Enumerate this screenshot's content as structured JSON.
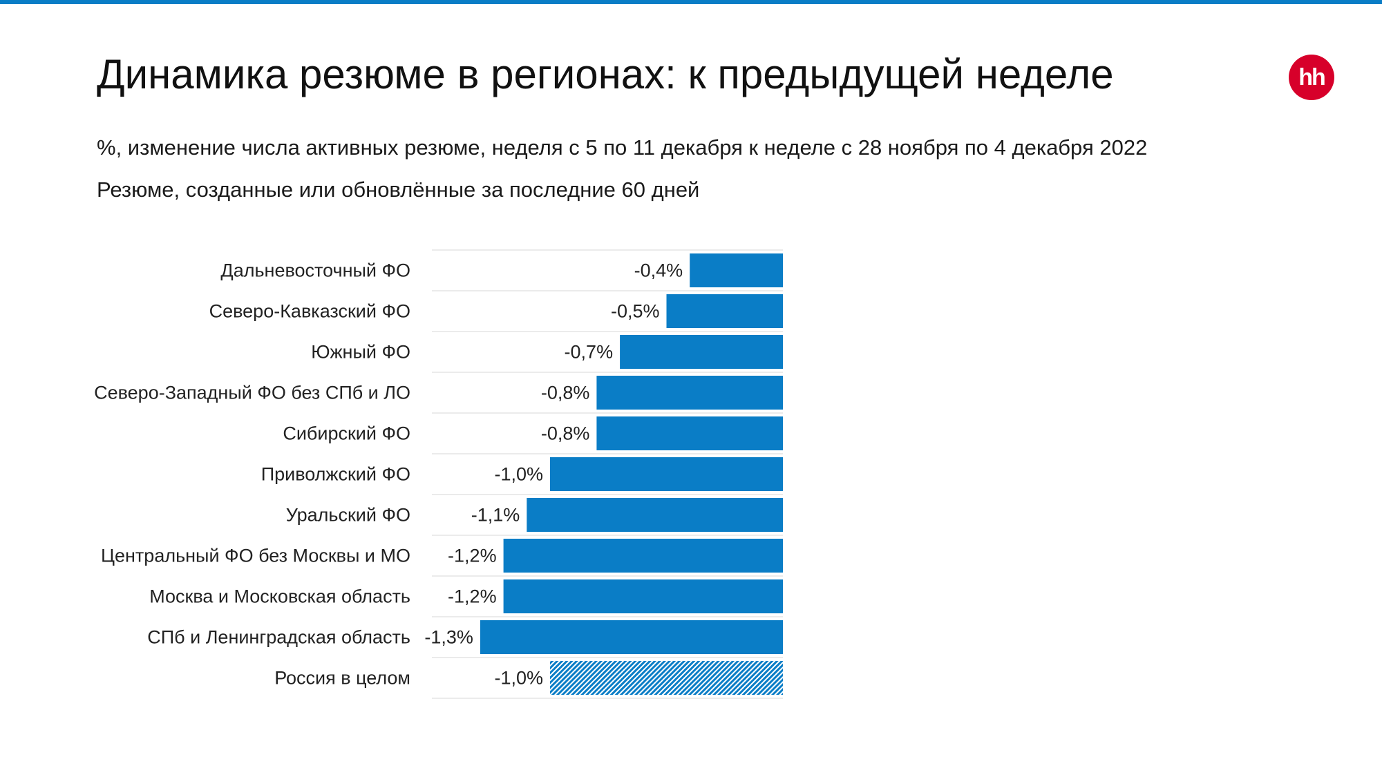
{
  "header": {
    "title": "Динамика резюме в регионах: к предыдущей неделе",
    "subtitle": "%, изменение числа активных резюме, неделя с 5 по 11 декабря к неделе с 28 ноября по 4 декабря 2022",
    "note": "Резюме, созданные или обновлённые за последние 60 дней",
    "logo_text": "hh"
  },
  "colors": {
    "bar": "#0a7dc6",
    "top_rule": "#0a7dc6",
    "logo": "#d7002a"
  },
  "chart_data": {
    "type": "bar",
    "orientation": "horizontal",
    "categories": [
      "Дальневосточный ФО",
      "Северо-Кавказский ФО",
      "Южный ФО",
      "Северо-Западный ФО без СПб и ЛО",
      "Сибирский ФО",
      "Приволжский ФО",
      "Уральский ФО",
      "Центральный ФО без Москвы и МО",
      "Москва и Московская область",
      "СПб и Ленинградская область",
      "Россия в целом"
    ],
    "values": [
      -0.4,
      -0.5,
      -0.7,
      -0.8,
      -0.8,
      -1.0,
      -1.1,
      -1.2,
      -1.2,
      -1.3,
      -1.0
    ],
    "labels": [
      "-0,4%",
      "-0,5%",
      "-0,7%",
      "-0,8%",
      "-0,8%",
      "-1,0%",
      "-1,1%",
      "-1,2%",
      "-1,2%",
      "-1,3%",
      "-1,0%"
    ],
    "hatched_categories": [
      "Россия в целом"
    ],
    "grid": false
  }
}
